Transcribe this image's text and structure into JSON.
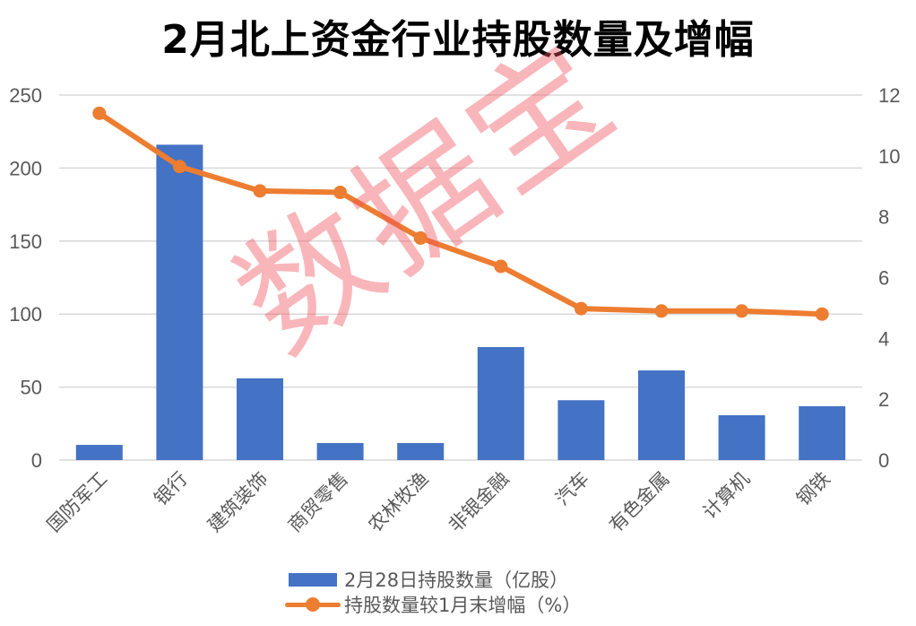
{
  "title": "2月北上资金行业持股数量及增幅",
  "watermark": "数据宝",
  "legend": {
    "bar_label": "2月28日持股数量（亿股）",
    "line_label": "持股数量较1月末增幅（%）"
  },
  "colors": {
    "bar": "#4472c4",
    "line": "#ed7d31",
    "grid": "#d9d9d9",
    "text": "#595959"
  },
  "chart_data": {
    "type": "bar+line",
    "title": "2月北上资金行业持股数量及增幅",
    "categories": [
      "国防军工",
      "银行",
      "建筑装饰",
      "商贸零售",
      "农林牧渔",
      "非银金融",
      "汽车",
      "有色金属",
      "计算机",
      "钢铁"
    ],
    "series": [
      {
        "name": "2月28日持股数量（亿股）",
        "type": "bar",
        "axis": "left",
        "values": [
          10.4,
          216,
          56,
          11.7,
          11.7,
          77.4,
          41,
          61.4,
          30.7,
          36.9
        ]
      },
      {
        "name": "持股数量较1月末增幅（%）",
        "type": "line",
        "axis": "right",
        "values": [
          11.4,
          9.65,
          8.85,
          8.8,
          7.3,
          6.37,
          4.98,
          4.9,
          4.9,
          4.8
        ]
      }
    ],
    "y_left": {
      "ylim": [
        0,
        250
      ],
      "ticks": [
        0,
        50,
        100,
        150,
        200,
        250
      ],
      "label": ""
    },
    "y_right": {
      "ylim": [
        0,
        12
      ],
      "ticks": [
        0,
        2,
        4,
        6,
        8,
        10,
        12
      ],
      "label": ""
    },
    "xlabel": "",
    "grid": true,
    "legend_position": "bottom"
  }
}
